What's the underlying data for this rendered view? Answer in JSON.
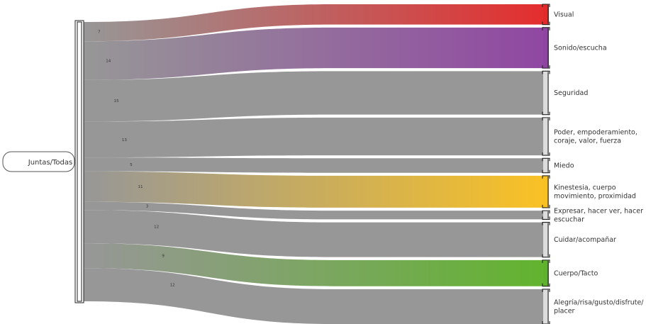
{
  "chart_data": {
    "type": "sankey",
    "source": {
      "label": "Juntas/Todas"
    },
    "targets": [
      {
        "label": "Visual",
        "lines": [
          "Visual"
        ],
        "value": 7,
        "color": "#e32a2a",
        "gradient": true
      },
      {
        "label": "Sonido/escucha",
        "lines": [
          "Sonido/escucha"
        ],
        "value": 14,
        "color": "#8e44a0",
        "gradient": true
      },
      {
        "label": "Seguridad",
        "lines": [
          "Seguridad"
        ],
        "value": 15,
        "color": "#959595",
        "gradient": false
      },
      {
        "label": "Poder, empoderamiento, coraje, valor, fuerza",
        "lines": [
          "Poder, empoderamiento,",
          "coraje, valor, fuerza"
        ],
        "value": 13,
        "color": "#959595",
        "gradient": false
      },
      {
        "label": "Miedo",
        "lines": [
          "Miedo"
        ],
        "value": 5,
        "color": "#959595",
        "gradient": false
      },
      {
        "label": "Kinestesia, cuerpo movimiento, proximidad",
        "lines": [
          "Kinestesia, cuerpo",
          "movimiento, proximidad"
        ],
        "value": 11,
        "color": "#f9c021",
        "gradient": true
      },
      {
        "label": "Expresar, hacer ver, hacer escuchar",
        "lines": [
          "Expresar, hacer ver, hacer",
          "escuchar"
        ],
        "value": 3,
        "color": "#959595",
        "gradient": false
      },
      {
        "label": "Cuidar/acompañar",
        "lines": [
          "Cuidar/acompañar"
        ],
        "value": 12,
        "color": "#959595",
        "gradient": false
      },
      {
        "label": "Cuerpo/Tacto",
        "lines": [
          "Cuerpo/Tacto"
        ],
        "value": 9,
        "color": "#5fb22b",
        "gradient": true
      },
      {
        "label": "Alegría/risa/gusto/disfrute/placer",
        "lines": [
          "Alegría/risa/gusto/disfrute/",
          "placer"
        ],
        "value": 12,
        "color": "#959595",
        "gradient": false
      }
    ],
    "base_color": "#959595"
  }
}
